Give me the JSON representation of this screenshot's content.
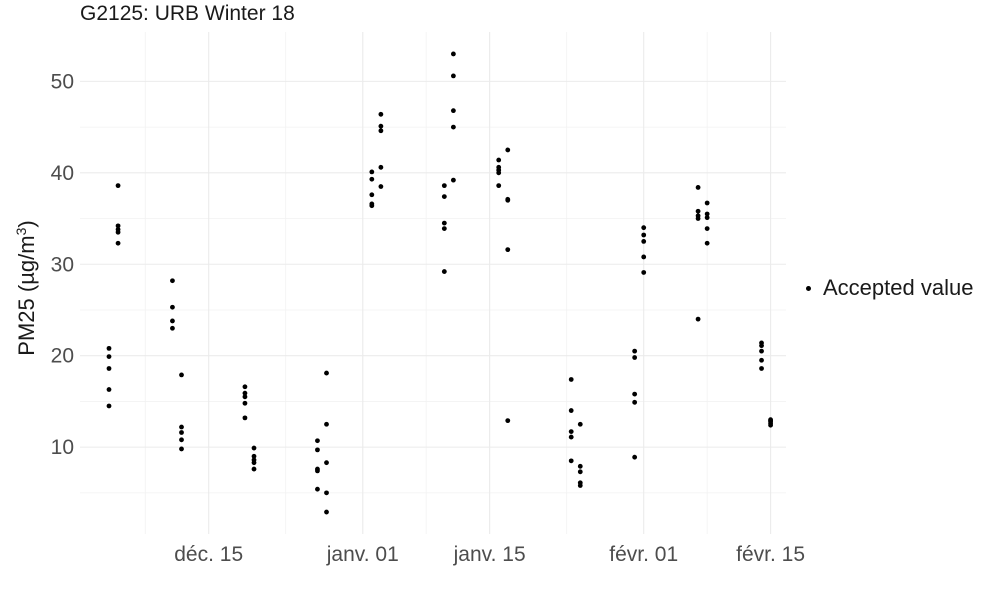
{
  "chart_data": {
    "type": "scatter",
    "title": "G2125: URB Winter 18",
    "xlabel": "",
    "ylabel": "PM25 (µg/m³)",
    "ylabel_parts": {
      "main": "PM25 (",
      "unit": "µg/m",
      "sup": "3",
      "close": ")"
    },
    "x_range_days_from_2017_12_01": [
      -0.2,
      77.7
    ],
    "ylim": [
      0.5,
      55.4
    ],
    "x_ticks": [
      {
        "label": "déc. 15",
        "day": 14
      },
      {
        "label": "janv. 01",
        "day": 31
      },
      {
        "label": "janv. 15",
        "day": 45
      },
      {
        "label": "févr. 01",
        "day": 62
      },
      {
        "label": "févr. 15",
        "day": 76
      }
    ],
    "y_ticks": [
      10,
      20,
      30,
      40,
      50
    ],
    "y_minor_ticks": [
      5,
      15,
      25,
      35,
      45
    ],
    "grid": true,
    "legend": {
      "position": "right",
      "label": "Accepted value"
    },
    "point_color": "#000000",
    "series": [
      {
        "name": "Accepted value",
        "points": [
          [
            3.0,
            14.5
          ],
          [
            3.0,
            16.3
          ],
          [
            3.0,
            18.6
          ],
          [
            3.0,
            19.9
          ],
          [
            3.0,
            20.8
          ],
          [
            4.0,
            32.3
          ],
          [
            4.0,
            33.5
          ],
          [
            4.0,
            33.8
          ],
          [
            4.0,
            34.2
          ],
          [
            4.0,
            38.6
          ],
          [
            10.0,
            23.0
          ],
          [
            10.0,
            23.8
          ],
          [
            10.0,
            25.3
          ],
          [
            10.0,
            28.2
          ],
          [
            11.0,
            9.8
          ],
          [
            11.0,
            10.8
          ],
          [
            11.0,
            11.6
          ],
          [
            11.0,
            12.2
          ],
          [
            11.0,
            17.9
          ],
          [
            18.0,
            13.2
          ],
          [
            18.0,
            14.8
          ],
          [
            18.0,
            15.5
          ],
          [
            18.0,
            15.9
          ],
          [
            18.0,
            16.6
          ],
          [
            19.0,
            7.6
          ],
          [
            19.0,
            8.3
          ],
          [
            19.0,
            8.6
          ],
          [
            19.0,
            9.0
          ],
          [
            19.0,
            9.9
          ],
          [
            26.0,
            5.4
          ],
          [
            26.0,
            7.4
          ],
          [
            26.0,
            7.6
          ],
          [
            26.0,
            9.7
          ],
          [
            26.0,
            10.7
          ],
          [
            27.0,
            2.9
          ],
          [
            27.0,
            5.0
          ],
          [
            27.0,
            8.3
          ],
          [
            27.0,
            12.5
          ],
          [
            27.0,
            18.1
          ],
          [
            32.0,
            36.4
          ],
          [
            32.0,
            36.6
          ],
          [
            32.0,
            37.6
          ],
          [
            32.0,
            39.3
          ],
          [
            32.0,
            40.1
          ],
          [
            33.0,
            38.5
          ],
          [
            33.0,
            40.6
          ],
          [
            33.0,
            44.6
          ],
          [
            33.0,
            45.1
          ],
          [
            33.0,
            46.4
          ],
          [
            40.0,
            29.2
          ],
          [
            40.0,
            33.9
          ],
          [
            40.0,
            34.5
          ],
          [
            40.0,
            37.4
          ],
          [
            40.0,
            38.6
          ],
          [
            41.0,
            39.2
          ],
          [
            41.0,
            45.0
          ],
          [
            41.0,
            46.8
          ],
          [
            41.0,
            50.6
          ],
          [
            41.0,
            53.0
          ],
          [
            46.0,
            38.6
          ],
          [
            46.0,
            40.0
          ],
          [
            46.0,
            40.3
          ],
          [
            46.0,
            40.6
          ],
          [
            46.0,
            41.4
          ],
          [
            47.0,
            12.9
          ],
          [
            47.0,
            31.6
          ],
          [
            47.0,
            37.0
          ],
          [
            47.0,
            37.1
          ],
          [
            47.0,
            42.5
          ],
          [
            54.0,
            8.5
          ],
          [
            54.0,
            11.1
          ],
          [
            54.0,
            11.7
          ],
          [
            54.0,
            14.0
          ],
          [
            54.0,
            17.4
          ],
          [
            55.0,
            5.8
          ],
          [
            55.0,
            6.1
          ],
          [
            55.0,
            7.3
          ],
          [
            55.0,
            7.9
          ],
          [
            55.0,
            12.5
          ],
          [
            61.0,
            8.9
          ],
          [
            61.0,
            14.9
          ],
          [
            61.0,
            15.8
          ],
          [
            61.0,
            19.8
          ],
          [
            61.0,
            20.5
          ],
          [
            62.0,
            29.1
          ],
          [
            62.0,
            30.8
          ],
          [
            62.0,
            32.5
          ],
          [
            62.0,
            33.2
          ],
          [
            62.0,
            34.0
          ],
          [
            68.0,
            24.0
          ],
          [
            68.0,
            35.0
          ],
          [
            68.0,
            35.3
          ],
          [
            68.0,
            35.8
          ],
          [
            68.0,
            38.4
          ],
          [
            69.0,
            32.3
          ],
          [
            69.0,
            33.9
          ],
          [
            69.0,
            35.1
          ],
          [
            69.0,
            35.5
          ],
          [
            69.0,
            36.7
          ],
          [
            75.0,
            18.6
          ],
          [
            75.0,
            19.5
          ],
          [
            75.0,
            20.5
          ],
          [
            75.0,
            21.1
          ],
          [
            75.0,
            21.4
          ],
          [
            76.0,
            12.4
          ],
          [
            76.0,
            12.6
          ],
          [
            76.0,
            12.8
          ],
          [
            76.0,
            12.9
          ],
          [
            76.0,
            13.0
          ]
        ]
      }
    ]
  }
}
